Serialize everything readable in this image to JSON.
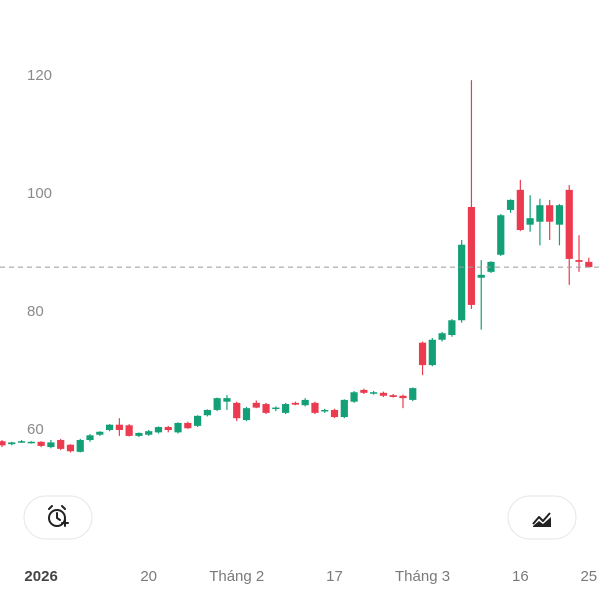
{
  "chart_data": {
    "type": "candlestick",
    "categories": [
      null,
      null,
      null,
      null,
      "2026",
      null,
      null,
      null,
      null,
      null,
      null,
      null,
      null,
      null,
      null,
      "20",
      null,
      null,
      null,
      null,
      null,
      null,
      null,
      null,
      "Tháng 2",
      null,
      null,
      null,
      null,
      null,
      null,
      null,
      null,
      null,
      "17",
      null,
      null,
      null,
      null,
      null,
      null,
      null,
      null,
      "Tháng 3",
      null,
      null,
      null,
      null,
      null,
      null,
      null,
      null,
      null,
      "16",
      null,
      null,
      null,
      null,
      null,
      null,
      "25"
    ],
    "open": [
      58.1,
      57.6,
      57.9,
      57.8,
      58.0,
      57.1,
      58.3,
      57.5,
      56.3,
      58.3,
      59.2,
      60.0,
      60.9,
      60.8,
      59.0,
      59.2,
      59.6,
      60.5,
      59.6,
      61.2,
      60.7,
      62.5,
      63.4,
      64.8,
      64.6,
      61.7,
      64.6,
      64.4,
      63.6,
      62.9,
      64.6,
      64.2,
      64.6,
      63.2,
      63.4,
      62.2,
      64.8,
      66.8,
      66.2,
      66.3,
      65.9,
      65.8,
      65.1,
      74.8,
      71.0,
      75.3,
      76.1,
      78.6,
      97.8,
      85.8,
      86.8,
      89.7,
      97.3,
      100.7,
      94.8,
      95.3,
      98.1,
      94.8,
      100.7,
      88.8,
      88.5
    ],
    "high": [
      58.3,
      58.0,
      58.3,
      58.1,
      58.1,
      58.3,
      58.5,
      57.6,
      58.5,
      59.3,
      59.8,
      61.0,
      62.0,
      61.0,
      59.6,
      60.0,
      60.6,
      60.7,
      61.3,
      61.4,
      62.5,
      63.5,
      65.5,
      65.9,
      64.8,
      63.9,
      65.0,
      64.6,
      64.0,
      64.6,
      64.8,
      65.4,
      64.8,
      63.6,
      63.6,
      65.2,
      66.6,
      67.0,
      66.6,
      66.5,
      66.1,
      66.0,
      67.2,
      75.0,
      75.6,
      76.6,
      78.8,
      92.2,
      119.3,
      88.8,
      88.6,
      96.6,
      99.1,
      102.4,
      99.8,
      99.2,
      99.0,
      98.3,
      101.5,
      93.0,
      89.2
    ],
    "low": [
      57.1,
      57.4,
      57.8,
      57.7,
      57.1,
      56.9,
      56.6,
      56.2,
      56.2,
      58.0,
      59.0,
      59.8,
      59.0,
      58.9,
      58.8,
      59.0,
      59.4,
      59.6,
      59.4,
      60.2,
      60.5,
      62.3,
      63.2,
      63.4,
      61.5,
      61.5,
      63.7,
      62.7,
      63.2,
      62.7,
      64.2,
      64.0,
      62.7,
      62.9,
      62.0,
      62.0,
      64.6,
      66.1,
      66.0,
      65.6,
      65.5,
      63.7,
      64.9,
      69.3,
      70.8,
      75.0,
      75.8,
      78.2,
      80.5,
      77.0,
      86.6,
      89.5,
      96.8,
      93.7,
      93.6,
      91.3,
      92.2,
      91.3,
      84.6,
      86.8,
      87.6
    ],
    "close": [
      57.4,
      57.9,
      58.1,
      58.0,
      57.3,
      57.9,
      56.8,
      56.4,
      58.3,
      59.1,
      59.7,
      60.9,
      60.0,
      59.0,
      59.5,
      59.8,
      60.5,
      60.0,
      61.2,
      60.3,
      62.4,
      63.4,
      65.4,
      65.4,
      62.0,
      63.7,
      63.8,
      62.9,
      63.8,
      64.4,
      64.3,
      65.1,
      62.9,
      63.4,
      62.2,
      65.1,
      66.4,
      66.3,
      66.4,
      65.8,
      65.6,
      65.4,
      67.1,
      71.0,
      75.3,
      76.4,
      78.6,
      91.4,
      81.2,
      86.3,
      88.5,
      96.4,
      99.0,
      93.9,
      95.9,
      98.1,
      95.3,
      98.1,
      89.0,
      88.5,
      87.6
    ],
    "up_color": "#13a077",
    "down_color": "#ec3a4f",
    "last_price": 87.6,
    "ylim": [
      50,
      130
    ],
    "yticks": [
      60,
      80,
      100,
      120
    ]
  }
}
